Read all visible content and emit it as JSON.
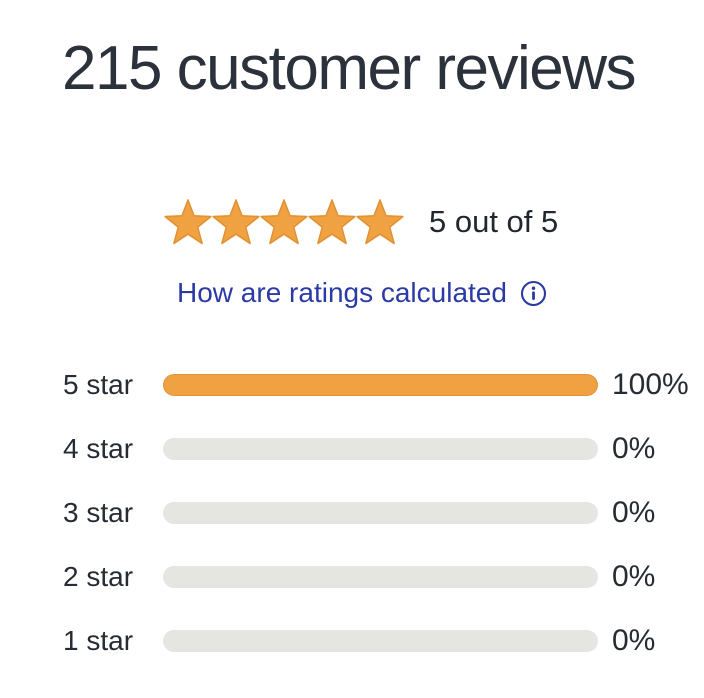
{
  "title": "215 customer reviews",
  "rating": {
    "stars_count": 5,
    "score_label": "5 out of 5",
    "link_label": "How are ratings calculated",
    "info_icon": "info-icon",
    "star_icon": "star-icon"
  },
  "ratings": {
    "rows": [
      {
        "label": "5 star",
        "percent": "100%",
        "value": 100
      },
      {
        "label": "4 star",
        "percent": "0%",
        "value": 0
      },
      {
        "label": "3 star",
        "percent": "0%",
        "value": 0
      },
      {
        "label": "2 star",
        "percent": "0%",
        "value": 0
      },
      {
        "label": "1 star",
        "percent": "0%",
        "value": 0
      }
    ]
  },
  "chart_data": {
    "type": "bar",
    "orientation": "horizontal",
    "title": "215 customer reviews",
    "categories": [
      "5 star",
      "4 star",
      "3 star",
      "2 star",
      "1 star"
    ],
    "values": [
      100,
      0,
      0,
      0,
      0
    ],
    "unit": "%",
    "xlim": [
      0,
      100
    ],
    "annotations": [
      "5 out of 5",
      "How are ratings calculated"
    ]
  },
  "colors": {
    "star_orange": "#F0A142",
    "bar_orange": "#F0A142",
    "track_gray": "#E5E5E1",
    "link_blue": "#2B3AA5",
    "text_dark": "#262C33",
    "title_dark": "#2B323B"
  }
}
